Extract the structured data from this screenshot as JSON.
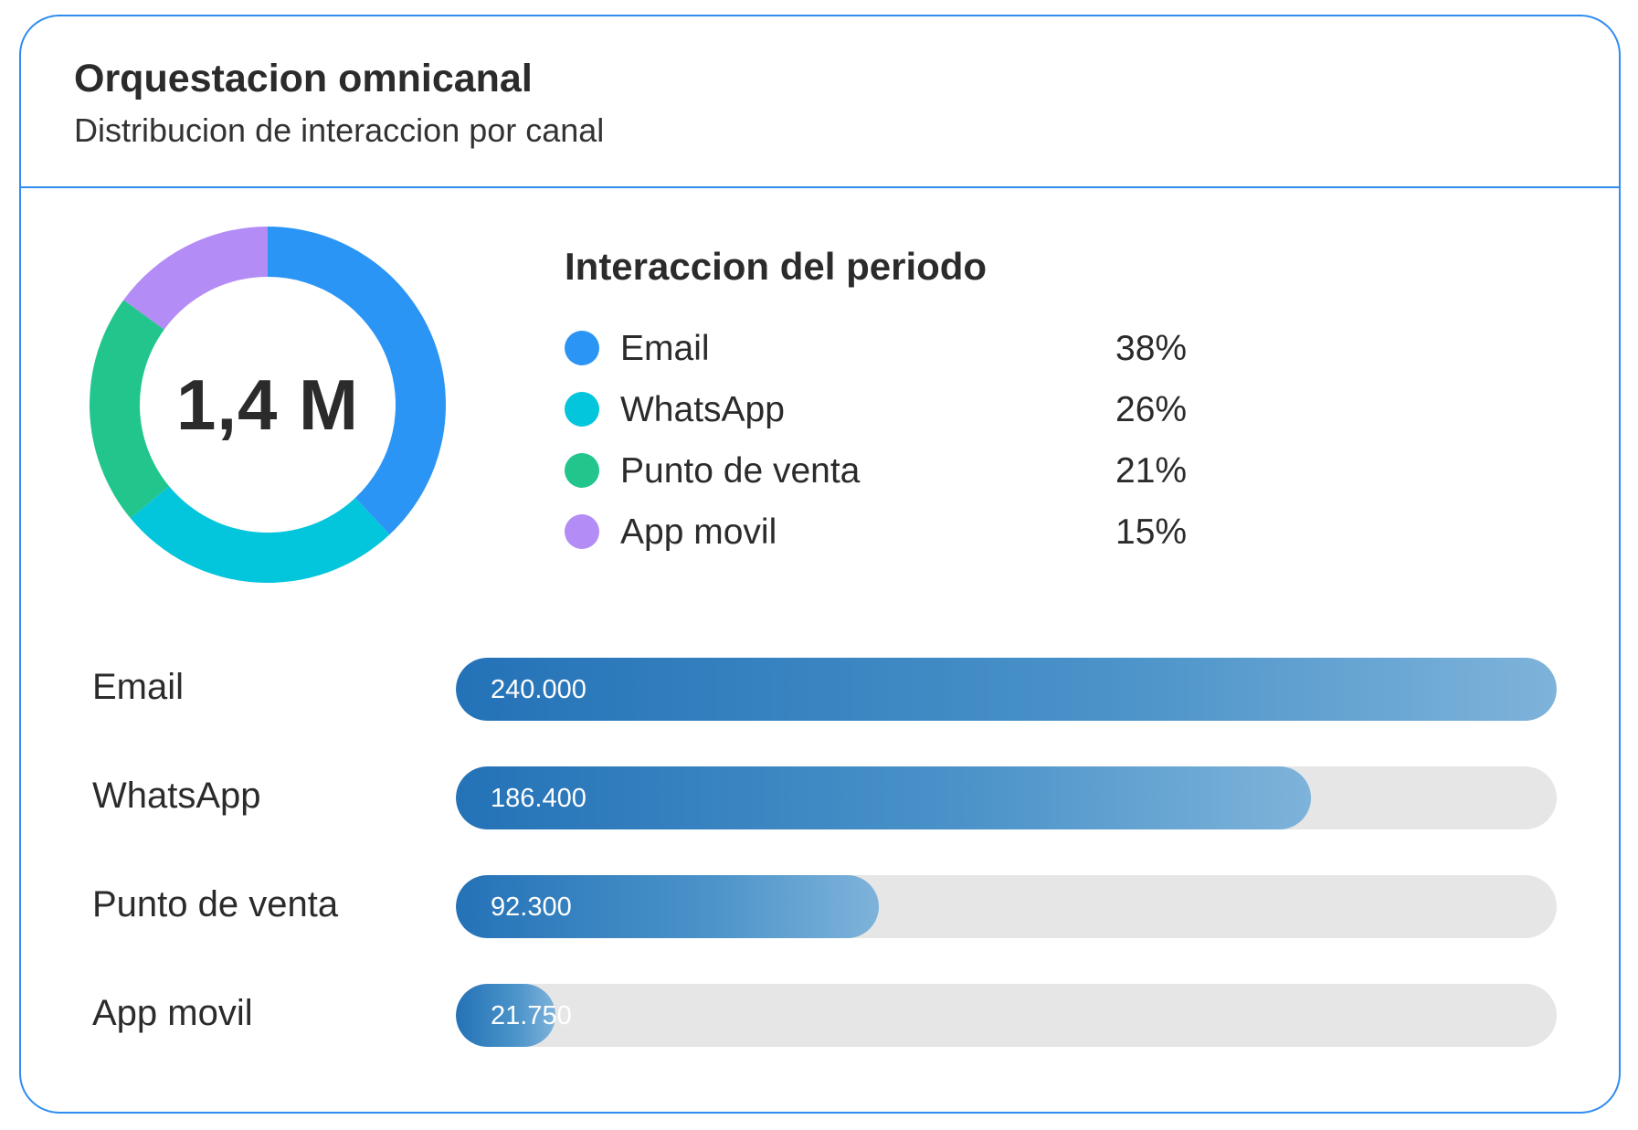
{
  "header": {
    "title": "Orquestacion omnicanal",
    "subtitle": "Distribucion de interaccion por canal"
  },
  "donut": {
    "center_label": "1,4 M"
  },
  "legend": {
    "title": "Interaccion del periodo",
    "items": [
      {
        "label": "Email",
        "percent_text": "38%"
      },
      {
        "label": "WhatsApp",
        "percent_text": "26%"
      },
      {
        "label": "Punto de venta",
        "percent_text": "21%"
      },
      {
        "label": "App movil",
        "percent_text": "15%"
      }
    ]
  },
  "bars": {
    "items": [
      {
        "label": "Email",
        "value_text": "240.000"
      },
      {
        "label": "WhatsApp",
        "value_text": "186.400"
      },
      {
        "label": "Punto de venta",
        "value_text": "92.300"
      },
      {
        "label": "App movil",
        "value_text": "21.750"
      }
    ]
  },
  "chart_data": [
    {
      "type": "pie",
      "variant": "donut",
      "categories": [
        "Email",
        "WhatsApp",
        "Punto de venta",
        "App movil"
      ],
      "values": [
        38,
        26,
        21,
        15
      ],
      "unit": "%",
      "colors": [
        "#2b95f5",
        "#03c5dc",
        "#22c68c",
        "#b38cf6"
      ],
      "center_label": "1,4 M",
      "legend_title": "Interaccion del periodo",
      "legend_placement": "right"
    },
    {
      "type": "bar",
      "orientation": "horizontal",
      "categories": [
        "Email",
        "WhatsApp",
        "Punto de venta",
        "App movil"
      ],
      "values": [
        240000,
        186400,
        92300,
        21750
      ],
      "value_labels": [
        "240.000",
        "186.400",
        "92.300",
        "21.750"
      ],
      "xlim": [
        0,
        240000
      ],
      "bar_color_start": "#2472b7",
      "bar_color_end": "#7eb3da",
      "track_color": "#e6e6e6"
    }
  ]
}
